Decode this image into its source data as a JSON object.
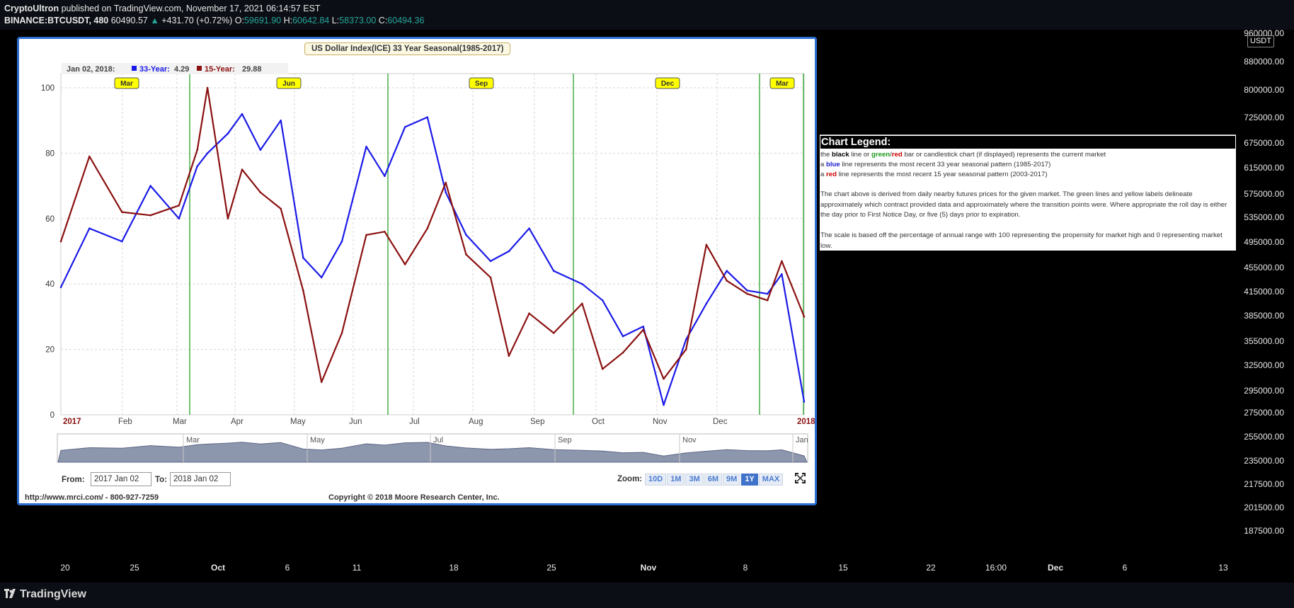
{
  "header": {
    "author": "CryptoUltron",
    "published_text": "published on TradingView.com, November 17, 2021 06:14:57 EST",
    "symbol": "BINANCE:BTCUSDT, 480",
    "last": "60490.57",
    "change_arrow": "▲",
    "change": "+431.70 (+0.72%)",
    "o_label": "O:",
    "o_value": "59691.90",
    "h_label": "H:",
    "h_value": "60642.84",
    "l_label": "L:",
    "l_value": "58373.00",
    "c_label": "C:",
    "c_value": "60494.36"
  },
  "price_axis": {
    "currency_badge": "USDT",
    "ticks": [
      "960000.00",
      "880000.00",
      "800000.00",
      "725000.00",
      "675000.00",
      "615000.00",
      "575000.00",
      "535000.00",
      "495000.00",
      "455000.00",
      "415000.00",
      "385000.00",
      "355000.00",
      "325000.00",
      "295000.00",
      "275000.00",
      "255000.00",
      "235000.00",
      "217500.00",
      "201500.00",
      "187500.00"
    ]
  },
  "time_axis": {
    "ticks": [
      "20",
      "25",
      "Oct",
      "6",
      "11",
      "18",
      "25",
      "Nov",
      "8",
      "15",
      "22",
      "16:00",
      "Dec",
      "6",
      "13"
    ],
    "bold_ticks": [
      "Oct",
      "Nov",
      "Dec"
    ]
  },
  "footer": {
    "logo_text": "TradingView"
  },
  "mrci": {
    "title": "US Dollar Index(ICE) 33 Year Seasonal(1985-2017)",
    "readout_date": "Jan 02, 2018:",
    "readout_33_label": "33-Year:",
    "readout_33_value": "4.29",
    "readout_15_label": "15-Year:",
    "readout_15_value": "29.88",
    "transition_labels": [
      "Mar",
      "Jun",
      "Sep",
      "Dec",
      "Mar"
    ],
    "navigator_labels": [
      "Mar",
      "May",
      "Jul",
      "Sep",
      "Nov",
      "Jan"
    ],
    "from_label": "From:",
    "from_value": "2017 Jan 02",
    "to_label": "To:",
    "to_value": "2018 Jan 02",
    "zoom_label": "Zoom:",
    "zoom_buttons": [
      "10D",
      "1M",
      "3M",
      "6M",
      "9M",
      "1Y",
      "MAX"
    ],
    "zoom_active": "1Y",
    "url": "http://www.mrci.com/ - 800-927-7259",
    "copyright": "Copyright © 2018 Moore Research Center, Inc.",
    "colors": {
      "series_33": "#1a1ae8",
      "series_15": "#8b1010",
      "transition_line": "#2ca02c",
      "label_fill": "#ffff00"
    }
  },
  "chart_data": {
    "type": "line",
    "title": "US Dollar Index(ICE) 33 Year Seasonal(1985-2017)",
    "ylim": [
      0,
      100
    ],
    "yticks": [
      0,
      20,
      40,
      60,
      80,
      100
    ],
    "xlabels": [
      "2017",
      "Feb",
      "Mar",
      "Apr",
      "May",
      "Jun",
      "Jul",
      "Aug",
      "Sep",
      "Oct",
      "Nov",
      "Dec",
      "2018"
    ],
    "x": [
      "2017-01-02",
      "2017-01-16",
      "2017-02-01",
      "2017-02-15",
      "2017-03-01",
      "2017-03-10",
      "2017-03-15",
      "2017-03-25",
      "2017-04-01",
      "2017-04-10",
      "2017-04-20",
      "2017-05-01",
      "2017-05-10",
      "2017-05-20",
      "2017-06-01",
      "2017-06-10",
      "2017-06-20",
      "2017-07-01",
      "2017-07-10",
      "2017-07-20",
      "2017-08-01",
      "2017-08-10",
      "2017-08-20",
      "2017-09-01",
      "2017-09-15",
      "2017-09-25",
      "2017-10-05",
      "2017-10-15",
      "2017-10-25",
      "2017-11-05",
      "2017-11-15",
      "2017-11-25",
      "2017-12-05",
      "2017-12-15",
      "2017-12-22",
      "2018-01-02"
    ],
    "series": [
      {
        "name": "33-Year",
        "values": [
          39,
          57,
          53,
          70,
          60,
          76,
          80,
          86,
          92,
          81,
          90,
          48,
          42,
          53,
          82,
          73,
          88,
          91,
          68,
          55,
          47,
          50,
          57,
          44,
          40,
          35,
          24,
          27,
          3,
          23,
          34,
          44,
          38,
          37,
          43,
          4
        ]
      },
      {
        "name": "15-Year",
        "values": [
          53,
          79,
          62,
          61,
          64,
          81,
          100,
          60,
          75,
          68,
          63,
          38,
          10,
          25,
          55,
          56,
          46,
          57,
          71,
          49,
          42,
          18,
          31,
          25,
          34,
          14,
          19,
          26,
          11,
          20,
          52,
          41,
          37,
          35,
          47,
          30
        ]
      }
    ]
  },
  "legend": {
    "title": "Chart Legend:",
    "line1": {
      "t1": "the ",
      "black": "black",
      "t2": " line or ",
      "green": "green",
      "slash": "/",
      "red": "red",
      "t3": " bar or candlestick chart (if displayed) represents the current market"
    },
    "line2": {
      "t1": "a ",
      "blue": "blue",
      "t2": " line represents the most recent 33 year seasonal pattern (1985-2017)"
    },
    "line3": {
      "t1": "a ",
      "red": "red",
      "t2": " line represents the most recent 15 year seasonal pattern (2003-2017)"
    },
    "para1": "The chart above is derived from daily nearby futures prices for the given market. The green lines and yellow labels delineate approximately which contract provided data and approximately where the transition points were. Where appropriate the roll day is either the day prior to First Notice Day, or five (5) days prior to expiration.",
    "para2": "The scale is based off the percentage of annual range with 100 representing the propensity for market high and 0 representing market low."
  }
}
